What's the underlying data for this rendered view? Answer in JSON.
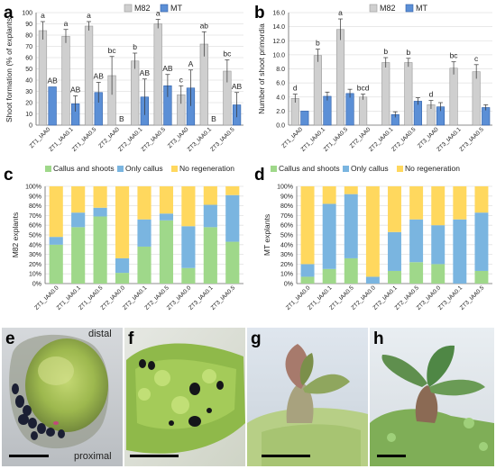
{
  "panels": {
    "a": "a",
    "b": "b",
    "c": "c",
    "d": "d",
    "e": "e",
    "f": "f",
    "g": "g",
    "h": "h"
  },
  "photo_labels": {
    "distal": "distal",
    "proximal": "proximal"
  },
  "colors": {
    "m82": "#cfcfcf",
    "mt": "#5b8fd6",
    "callus_and_shoots": "#9fd88a",
    "only_callus": "#7ab5e0",
    "no_regeneration": "#ffd85e",
    "grid": "#e2e2e2",
    "axis": "#666666"
  },
  "chart_data": [
    {
      "panel": "a",
      "type": "bar",
      "ylabel": "Shoot formation (% of explants)",
      "ylim": [
        0,
        100
      ],
      "yticks": [
        "0",
        "10",
        "20",
        "30",
        "40",
        "50",
        "60",
        "70",
        "80",
        "90",
        "100"
      ],
      "categories": [
        "ZT1_IAA0",
        "ZT1_IAA0.1",
        "ZT1_IAA0.5",
        "ZT2_IAA0",
        "ZT2_IAA0.1",
        "ZT2_IAA0.5",
        "ZT3_IAA0",
        "ZT3_IAA0.1",
        "ZT3_IAA0.5"
      ],
      "legend": [
        "M82",
        "MT"
      ],
      "series": [
        {
          "name": "M82",
          "values": [
            84,
            79,
            88,
            44,
            57,
            90,
            27,
            72,
            48
          ],
          "errors": [
            8,
            6,
            4,
            17,
            7,
            4,
            8,
            11,
            10
          ],
          "letters": [
            "a",
            "a",
            "a",
            "bc",
            "b",
            "a",
            "c",
            "ab",
            "bc"
          ]
        },
        {
          "name": "MT",
          "values": [
            34,
            19,
            29,
            0,
            25,
            35,
            33,
            0,
            18
          ],
          "errors": [
            0,
            7,
            9,
            0,
            16,
            10,
            16,
            0,
            11
          ],
          "letters": [
            "AB",
            "AB",
            "AB",
            "B",
            "AB",
            "AB",
            "A",
            "B",
            "AB"
          ]
        }
      ]
    },
    {
      "panel": "b",
      "type": "bar",
      "ylabel": "Number of shoot primordia",
      "ylim": [
        0,
        16
      ],
      "yticks": [
        "0.0",
        "2.0",
        "4.0",
        "6.0",
        "8.0",
        "10.0",
        "12.0",
        "14.0",
        "16.0"
      ],
      "categories": [
        "ZT1_IAA0",
        "ZT1_IAA0.1",
        "ZT1_IAA0.5",
        "ZT2_IAA0",
        "ZT2_IAA0.1",
        "ZT2_IAA0.5",
        "ZT3_IAA0",
        "ZT3_IAA0.1",
        "ZT3_IAA0.5"
      ],
      "legend": [
        "M82",
        "MT"
      ],
      "series": [
        {
          "name": "M82",
          "values": [
            3.8,
            9.9,
            13.6,
            4.0,
            8.9,
            8.9,
            2.9,
            8.1,
            7.6
          ],
          "errors": [
            0.6,
            0.9,
            1.5,
            0.4,
            0.7,
            0.6,
            0.6,
            0.9,
            1.0
          ],
          "letters": [
            "d",
            "b",
            "a",
            "bcd",
            "b",
            "b",
            "d",
            "bc",
            "c"
          ]
        },
        {
          "name": "MT",
          "values": [
            2.0,
            4.1,
            4.5,
            0,
            1.5,
            3.4,
            2.6,
            0,
            2.5
          ],
          "errors": [
            0,
            0.6,
            0.6,
            0,
            0.4,
            0.5,
            0.6,
            0,
            0.4
          ],
          "letters": [
            "",
            "",
            "",
            "",
            "",
            "",
            "",
            "",
            ""
          ]
        }
      ]
    },
    {
      "panel": "c",
      "type": "bar",
      "stacked": true,
      "ylabel": "M82 explants",
      "ylim": [
        0,
        100
      ],
      "yticks": [
        "0%",
        "10%",
        "20%",
        "30%",
        "40%",
        "50%",
        "60%",
        "70%",
        "80%",
        "90%",
        "100%"
      ],
      "categories": [
        "ZT1_IAA0.0",
        "ZT1_IAA0.1",
        "ZT1_IAA0.5",
        "ZT2_IAA0.0",
        "ZT2_IAA0.1",
        "ZT2_IAA0.5",
        "ZT3_IAA0.0",
        "ZT3_IAA0.1",
        "ZT3_IAA0.5"
      ],
      "legend": [
        "Callus and shoots",
        "Only callus",
        "No regeneration"
      ],
      "series": [
        {
          "name": "Callus and shoots",
          "values": [
            40,
            58,
            69,
            11,
            38,
            65,
            16,
            58,
            43
          ]
        },
        {
          "name": "Only callus",
          "values": [
            8,
            15,
            9,
            15,
            28,
            7,
            43,
            23,
            48
          ]
        },
        {
          "name": "No regeneration",
          "values": [
            52,
            27,
            22,
            74,
            34,
            28,
            41,
            19,
            9
          ]
        }
      ]
    },
    {
      "panel": "d",
      "type": "bar",
      "stacked": true,
      "ylabel": "MT explants",
      "ylim": [
        0,
        100
      ],
      "yticks": [
        "0%",
        "10%",
        "20%",
        "30%",
        "40%",
        "50%",
        "60%",
        "70%",
        "80%",
        "90%",
        "100%"
      ],
      "categories": [
        "ZT1_IAA0.0",
        "ZT1_IAA0.1",
        "ZT1_IAA0.5",
        "ZT2_IAA0.0",
        "ZT2_IAA0.1",
        "ZT2_IAA0.5",
        "ZT3_IAA0.0",
        "ZT3_IAA0.1",
        "ZT3_IAA0.5"
      ],
      "legend": [
        "Callus and shoots",
        "Only callus",
        "No regeneration"
      ],
      "series": [
        {
          "name": "Callus and shoots",
          "values": [
            7,
            15,
            26,
            0,
            13,
            22,
            20,
            0,
            13
          ]
        },
        {
          "name": "Only callus",
          "values": [
            13,
            67,
            66,
            7,
            40,
            44,
            40,
            66,
            60
          ]
        },
        {
          "name": "No regeneration",
          "values": [
            80,
            18,
            8,
            93,
            47,
            34,
            40,
            34,
            27
          ]
        }
      ]
    }
  ]
}
